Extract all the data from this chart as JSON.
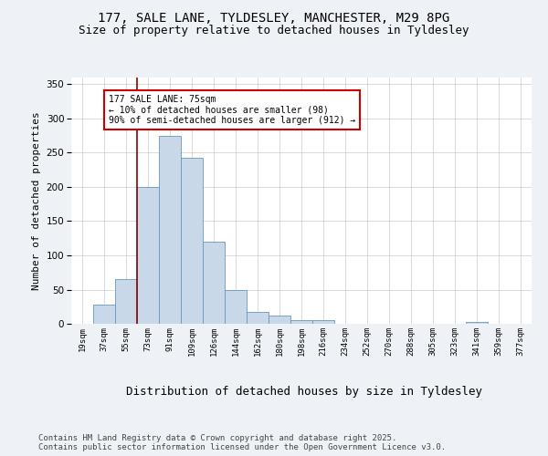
{
  "title_line1": "177, SALE LANE, TYLDESLEY, MANCHESTER, M29 8PG",
  "title_line2": "Size of property relative to detached houses in Tyldesley",
  "xlabel": "Distribution of detached houses by size in Tyldesley",
  "ylabel": "Number of detached properties",
  "categories": [
    "19sqm",
    "37sqm",
    "55sqm",
    "73sqm",
    "91sqm",
    "109sqm",
    "126sqm",
    "144sqm",
    "162sqm",
    "180sqm",
    "198sqm",
    "216sqm",
    "234sqm",
    "252sqm",
    "270sqm",
    "288sqm",
    "305sqm",
    "323sqm",
    "341sqm",
    "359sqm",
    "377sqm"
  ],
  "values": [
    0,
    28,
    65,
    200,
    275,
    243,
    120,
    50,
    18,
    12,
    5,
    5,
    0,
    0,
    0,
    0,
    0,
    0,
    3,
    0,
    0
  ],
  "bar_color": "#c8d8e8",
  "bar_edge_color": "#6699bb",
  "vline_color": "#8b0000",
  "annotation_text": "177 SALE LANE: 75sqm\n← 10% of detached houses are smaller (98)\n90% of semi-detached houses are larger (912) →",
  "annotation_box_color": "#ffffff",
  "annotation_box_edge_color": "#cc0000",
  "ylim": [
    0,
    360
  ],
  "yticks": [
    0,
    50,
    100,
    150,
    200,
    250,
    300,
    350
  ],
  "footer_text": "Contains HM Land Registry data © Crown copyright and database right 2025.\nContains public sector information licensed under the Open Government Licence v3.0.",
  "bg_color": "#eef2f7",
  "plot_bg_color": "#ffffff",
  "title_fontsize": 10,
  "subtitle_fontsize": 9,
  "annotation_fontsize": 7,
  "footer_fontsize": 6.5,
  "xlabel_fontsize": 9,
  "ylabel_fontsize": 8
}
